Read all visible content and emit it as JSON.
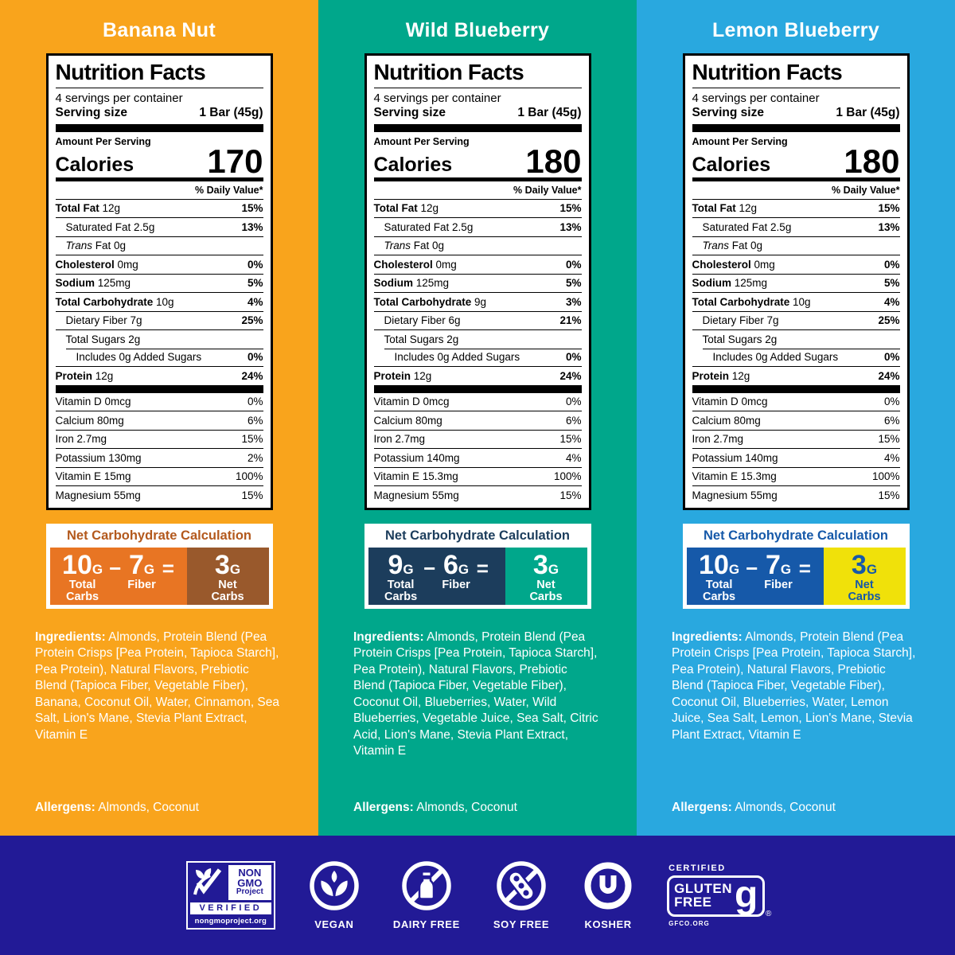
{
  "flavors": [
    {
      "name": "Banana Nut",
      "bg": "#F9A41C",
      "label": {
        "title": "Nutrition Facts",
        "servings": "4 servings per container",
        "serving_size_label": "Serving size",
        "serving_size_value": "1 Bar (45g)",
        "amount_per_serving": "Amount Per Serving",
        "calories_label": "Calories",
        "calories": "170",
        "dv_header": "% Daily Value*",
        "nutrients": [
          {
            "name": "Total Fat",
            "amount": "12g",
            "dv": "15%",
            "bold": true,
            "indent": 0
          },
          {
            "name": "Saturated Fat",
            "amount": "2.5g",
            "dv": "13%",
            "indent": 1
          },
          {
            "name": "Fat",
            "italic_prefix": "Trans",
            "amount": "0g",
            "dv": "",
            "indent": 1
          },
          {
            "name": "Cholesterol",
            "amount": "0mg",
            "dv": "0%",
            "bold": true,
            "indent": 0
          },
          {
            "name": "Sodium",
            "amount": "125mg",
            "dv": "5%",
            "bold": true,
            "indent": 0
          },
          {
            "name": "Total Carbohydrate",
            "amount": "10g",
            "dv": "4%",
            "bold": true,
            "indent": 0
          },
          {
            "name": "Dietary Fiber",
            "amount": "7g",
            "dv": "25%",
            "indent": 1
          },
          {
            "name": "Total Sugars",
            "amount": "2g",
            "dv": "",
            "indent": 1
          },
          {
            "name": "Includes 0g Added Sugars",
            "amount": "",
            "dv": "0%",
            "indent": 2,
            "inset_line": true
          },
          {
            "name": "Protein",
            "amount": "12g",
            "dv": "24%",
            "bold": true,
            "indent": 0
          }
        ],
        "vitamins": [
          {
            "name": "Vitamin D 0mcg",
            "dv": "0%"
          },
          {
            "name": "Calcium 80mg",
            "dv": "6%"
          },
          {
            "name": "Iron 2.7mg",
            "dv": "15%"
          },
          {
            "name": "Potassium 130mg",
            "dv": "2%"
          },
          {
            "name": "Vitamin E 15mg",
            "dv": "100%"
          },
          {
            "name": "Magnesium 55mg",
            "dv": "15%"
          }
        ]
      },
      "net_carbs": {
        "title": "Net Carbohydrate Calculation",
        "title_color": "#B3591D",
        "left_bg": "#E87523",
        "right_bg": "#99592C",
        "right_text": "#FFFFFF",
        "total": "10",
        "fiber": "7",
        "net": "3",
        "unit": "G",
        "minus": "−",
        "equals": "=",
        "total_label": "Total\nCarbs",
        "fiber_label": "Fiber",
        "net_label": "Net\nCarbs"
      },
      "ingredients_label": "Ingredients:",
      "ingredients": "Almonds, Protein Blend (Pea Protein Crisps [Pea Protein, Tapioca Starch], Pea Protein), Natural Flavors, Prebiotic Blend (Tapioca Fiber, Vegetable Fiber), Banana, Coconut Oil, Water, Cinnamon, Sea Salt, Lion's Mane, Stevia Plant Extract, Vitamin E",
      "allergens_label": "Allergens:",
      "allergens": "Almonds, Coconut"
    },
    {
      "name": "Wild Blueberry",
      "bg": "#00A78B",
      "label": {
        "title": "Nutrition Facts",
        "servings": "4 servings per container",
        "serving_size_label": "Serving size",
        "serving_size_value": "1 Bar (45g)",
        "amount_per_serving": "Amount Per Serving",
        "calories_label": "Calories",
        "calories": "180",
        "dv_header": "% Daily Value*",
        "nutrients": [
          {
            "name": "Total Fat",
            "amount": "12g",
            "dv": "15%",
            "bold": true,
            "indent": 0
          },
          {
            "name": "Saturated Fat",
            "amount": "2.5g",
            "dv": "13%",
            "indent": 1
          },
          {
            "name": "Fat",
            "italic_prefix": "Trans",
            "amount": "0g",
            "dv": "",
            "indent": 1
          },
          {
            "name": "Cholesterol",
            "amount": "0mg",
            "dv": "0%",
            "bold": true,
            "indent": 0
          },
          {
            "name": "Sodium",
            "amount": "125mg",
            "dv": "5%",
            "bold": true,
            "indent": 0
          },
          {
            "name": "Total Carbohydrate",
            "amount": "9g",
            "dv": "3%",
            "bold": true,
            "indent": 0
          },
          {
            "name": "Dietary Fiber",
            "amount": "6g",
            "dv": "21%",
            "indent": 1
          },
          {
            "name": "Total Sugars",
            "amount": "2g",
            "dv": "",
            "indent": 1
          },
          {
            "name": "Includes 0g Added Sugars",
            "amount": "",
            "dv": "0%",
            "indent": 2,
            "inset_line": true
          },
          {
            "name": "Protein",
            "amount": "12g",
            "dv": "24%",
            "bold": true,
            "indent": 0
          }
        ],
        "vitamins": [
          {
            "name": "Vitamin D 0mcg",
            "dv": "0%"
          },
          {
            "name": "Calcium 80mg",
            "dv": "6%"
          },
          {
            "name": "Iron 2.7mg",
            "dv": "15%"
          },
          {
            "name": "Potassium 140mg",
            "dv": "4%"
          },
          {
            "name": "Vitamin E 15.3mg",
            "dv": "100%"
          },
          {
            "name": "Magnesium 55mg",
            "dv": "15%"
          }
        ]
      },
      "net_carbs": {
        "title": "Net Carbohydrate Calculation",
        "title_color": "#1C3D5C",
        "left_bg": "#1C3D5C",
        "right_bg": "#00A78B",
        "right_text": "#FFFFFF",
        "total": "9",
        "fiber": "6",
        "net": "3",
        "unit": "G",
        "minus": "−",
        "equals": "=",
        "total_label": "Total\nCarbs",
        "fiber_label": "Fiber",
        "net_label": "Net\nCarbs"
      },
      "ingredients_label": "Ingredients:",
      "ingredients": "Almonds, Protein Blend (Pea Protein Crisps [Pea Protein, Tapioca Starch], Pea Protein), Natural Flavors, Prebiotic Blend (Tapioca Fiber, Vegetable Fiber), Coconut Oil, Blueberries, Water, Wild Blueberries, Vegetable Juice, Sea Salt, Citric Acid, Lion's Mane, Stevia Plant Extract, Vitamin E",
      "allergens_label": "Allergens:",
      "allergens": "Almonds, Coconut"
    },
    {
      "name": "Lemon Blueberry",
      "bg": "#29A8DF",
      "label": {
        "title": "Nutrition Facts",
        "servings": "4 servings per container",
        "serving_size_label": "Serving size",
        "serving_size_value": "1 Bar (45g)",
        "amount_per_serving": "Amount Per Serving",
        "calories_label": "Calories",
        "calories": "180",
        "dv_header": "% Daily Value*",
        "nutrients": [
          {
            "name": "Total Fat",
            "amount": "12g",
            "dv": "15%",
            "bold": true,
            "indent": 0
          },
          {
            "name": "Saturated Fat",
            "amount": "2.5g",
            "dv": "13%",
            "indent": 1
          },
          {
            "name": "Fat",
            "italic_prefix": "Trans",
            "amount": "0g",
            "dv": "",
            "indent": 1
          },
          {
            "name": "Cholesterol",
            "amount": "0mg",
            "dv": "0%",
            "bold": true,
            "indent": 0
          },
          {
            "name": "Sodium",
            "amount": "125mg",
            "dv": "5%",
            "bold": true,
            "indent": 0
          },
          {
            "name": "Total Carbohydrate",
            "amount": "10g",
            "dv": "4%",
            "bold": true,
            "indent": 0
          },
          {
            "name": "Dietary Fiber",
            "amount": "7g",
            "dv": "25%",
            "indent": 1
          },
          {
            "name": "Total Sugars",
            "amount": "2g",
            "dv": "",
            "indent": 1
          },
          {
            "name": "Includes 0g Added Sugars",
            "amount": "",
            "dv": "0%",
            "indent": 2,
            "inset_line": true
          },
          {
            "name": "Protein",
            "amount": "12g",
            "dv": "24%",
            "bold": true,
            "indent": 0
          }
        ],
        "vitamins": [
          {
            "name": "Vitamin D 0mcg",
            "dv": "0%"
          },
          {
            "name": "Calcium 80mg",
            "dv": "6%"
          },
          {
            "name": "Iron 2.7mg",
            "dv": "15%"
          },
          {
            "name": "Potassium 140mg",
            "dv": "4%"
          },
          {
            "name": "Vitamin E 15.3mg",
            "dv": "100%"
          },
          {
            "name": "Magnesium 55mg",
            "dv": "15%"
          }
        ]
      },
      "net_carbs": {
        "title": "Net Carbohydrate Calculation",
        "title_color": "#1659A9",
        "left_bg": "#1659A9",
        "right_bg": "#F0E10A",
        "right_text": "#1659A9",
        "total": "10",
        "fiber": "7",
        "net": "3",
        "unit": "G",
        "minus": "−",
        "equals": "=",
        "total_label": "Total\nCarbs",
        "fiber_label": "Fiber",
        "net_label": "Net\nCarbs"
      },
      "ingredients_label": "Ingredients:",
      "ingredients": "Almonds, Protein Blend (Pea Protein Crisps [Pea Protein, Tapioca Starch], Pea Protein), Natural Flavors, Prebiotic Blend (Tapioca Fiber, Vegetable Fiber), Coconut Oil, Blueberries, Water, Lemon Juice, Sea Salt, Lemon, Lion's Mane, Stevia Plant Extract, Vitamin E",
      "allergens_label": "Allergens:",
      "allergens": "Almonds, Coconut"
    }
  ],
  "footer": {
    "bg": "#221A96",
    "nongmo": {
      "line1": "NON",
      "line2": "GMO",
      "line3": "Project",
      "verified": "VERIFIED",
      "org": "nongmoproject.org"
    },
    "badges": [
      {
        "label": "VEGAN",
        "icon": "vegan-leaf-icon"
      },
      {
        "label": "DAIRY FREE",
        "icon": "dairy-free-icon"
      },
      {
        "label": "SOY FREE",
        "icon": "soy-free-icon"
      },
      {
        "label": "KOSHER",
        "icon": "kosher-ou-icon"
      }
    ],
    "glutenfree": {
      "certified": "CERTIFIED",
      "word1": "GLUTEN",
      "word2": "FREE",
      "org": "GFCO.ORG",
      "reg": "®"
    }
  }
}
